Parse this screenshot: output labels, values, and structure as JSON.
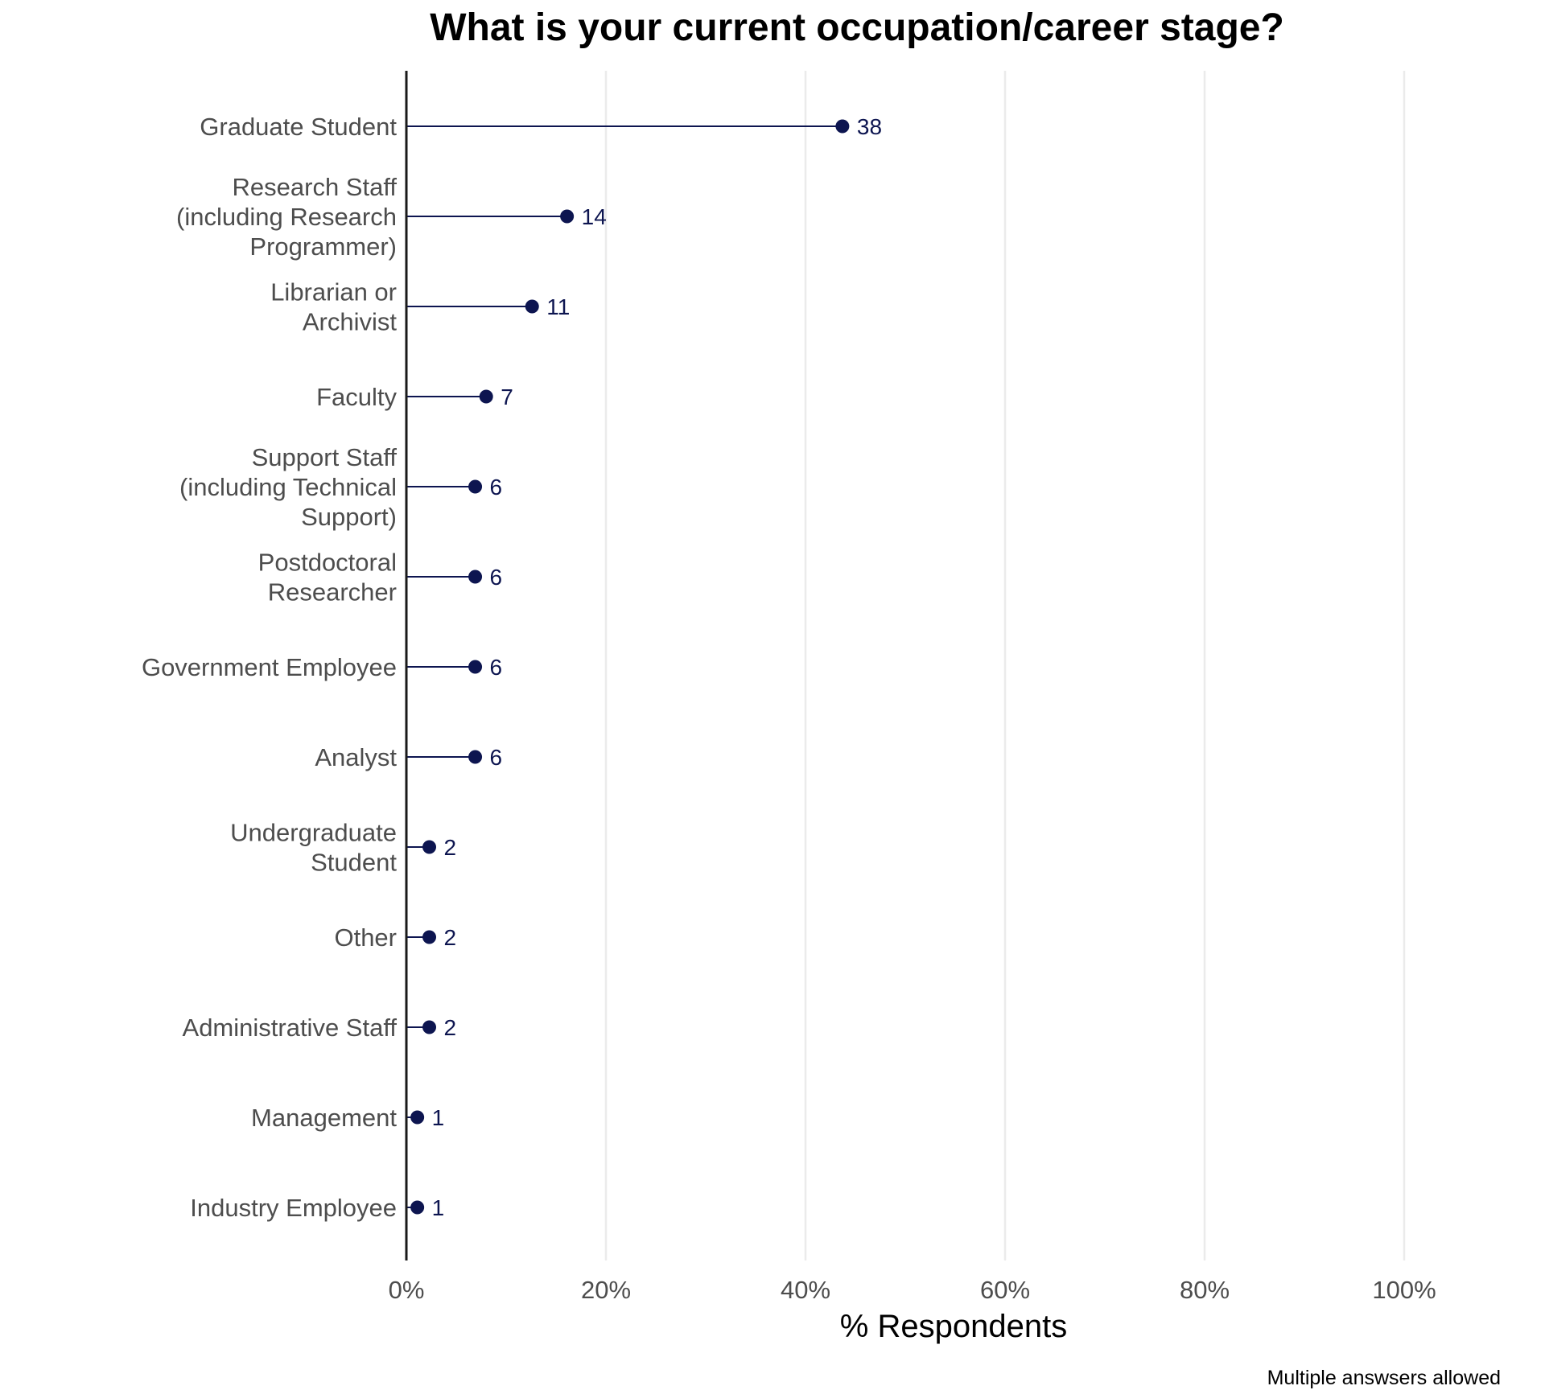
{
  "chart_data": {
    "type": "lollipop",
    "title": "What is your current occupation/career stage?",
    "xlabel": "% Respondents",
    "ylabel": "",
    "xlim": [
      0,
      100
    ],
    "x_ticks": [
      "0%",
      "20%",
      "40%",
      "60%",
      "80%",
      "100%"
    ],
    "x_tick_values": [
      0,
      20,
      40,
      60,
      80,
      100
    ],
    "caption": "Multiple answsers allowed",
    "grid": "vertical major",
    "colors": {
      "point": "#0d1550",
      "line": "#0d1550",
      "grid": "#ebebeb",
      "axis": "#1a1a1a"
    },
    "categories": [
      [
        "Graduate Student"
      ],
      [
        "Research Staff",
        "(including Research",
        "Programmer)"
      ],
      [
        "Librarian or",
        "Archivist"
      ],
      [
        "Faculty"
      ],
      [
        "Support Staff",
        "(including Technical",
        "Support)"
      ],
      [
        "Postdoctoral",
        "Researcher"
      ],
      [
        "Government Employee"
      ],
      [
        "Analyst"
      ],
      [
        "Undergraduate",
        "Student"
      ],
      [
        "Other"
      ],
      [
        "Administrative Staff"
      ],
      [
        "Management"
      ],
      [
        "Industry Employee"
      ]
    ],
    "percent": [
      43.7,
      16.1,
      12.6,
      8.0,
      6.9,
      6.9,
      6.9,
      6.9,
      2.3,
      2.3,
      2.3,
      1.1,
      1.1
    ],
    "labels": [
      "38",
      "14",
      "11",
      "7",
      "6",
      "6",
      "6",
      "6",
      "2",
      "2",
      "2",
      "1",
      "1"
    ]
  }
}
